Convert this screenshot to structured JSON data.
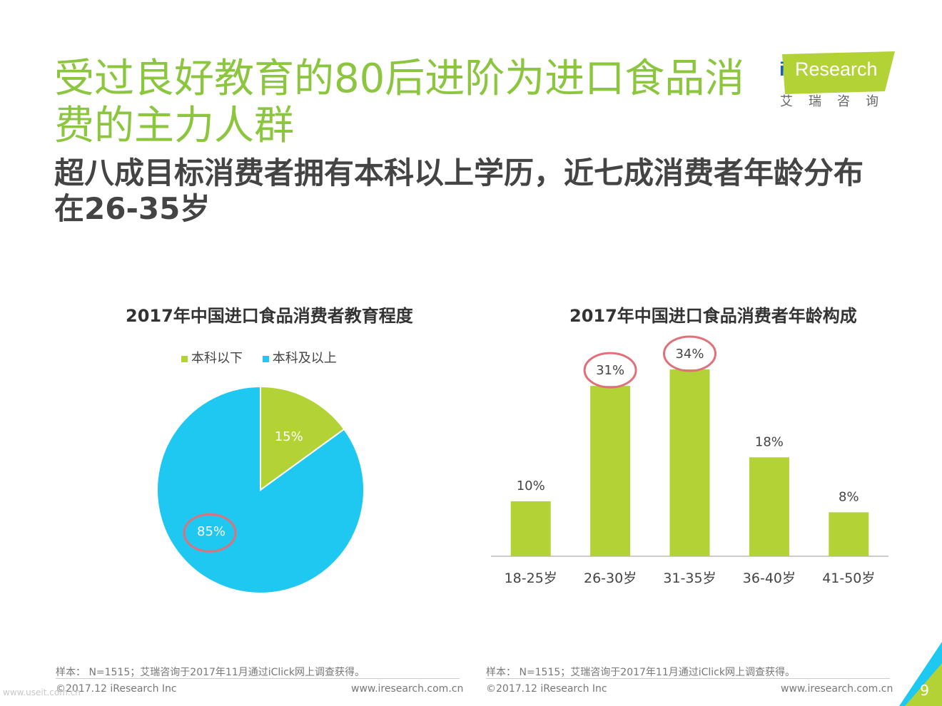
{
  "header": {
    "title": "受过良好教育的80后进阶为进口食品消费的主力人群",
    "subtitle": "超八成目标消费者拥有本科以上学历，近七成消费者年龄分布在26-35岁",
    "logo_text": "Research",
    "logo_i": "i",
    "logo_sub": "艾瑞咨询"
  },
  "colors": {
    "green": "#b2d235",
    "blue": "#1fc8f0",
    "title_green": "#8cc63f",
    "circle": "#e0707a"
  },
  "pie_chart": {
    "title": "2017年中国进口食品消费者教育程度",
    "legend": [
      {
        "label": "本科以下",
        "color": "#b2d235"
      },
      {
        "label": "本科及以上",
        "color": "#1fc8f0"
      }
    ]
  },
  "bar_chart": {
    "title": "2017年中国进口食品消费者年龄构成"
  },
  "chart_data": [
    {
      "type": "pie",
      "title": "2017年中国进口食品消费者教育程度",
      "slices": [
        {
          "label": "本科以下",
          "value": 15,
          "display": "15%",
          "color": "#b2d235"
        },
        {
          "label": "本科及以上",
          "value": 85,
          "display": "85%",
          "color": "#1fc8f0",
          "highlighted": true
        }
      ],
      "legend_placement": "top"
    },
    {
      "type": "bar",
      "title": "2017年中国进口食品消费者年龄构成",
      "categories": [
        "18-25岁",
        "26-30岁",
        "31-35岁",
        "36-40岁",
        "41-50岁"
      ],
      "values": [
        10,
        31,
        34,
        18,
        8
      ],
      "labels": [
        "10%",
        "31%",
        "34%",
        "18%",
        "8%"
      ],
      "highlighted": [
        "26-30岁",
        "31-35岁"
      ],
      "color": "#b2d235",
      "ylim": [
        0,
        34
      ],
      "grid": false
    }
  ],
  "footer": {
    "left": {
      "note": "样本： N=1515；艾瑞咨询于2017年11月通过iClick网上调查获得。",
      "copyright": "©2017.12 iResearch Inc",
      "url": "www.iresearch.com.cn"
    },
    "right": {
      "note": "样本： N=1515；艾瑞咨询于2017年11月通过iClick网上调查获得。",
      "copyright": "©2017.12 iResearch Inc",
      "url": "www.iresearch.com.cn"
    },
    "page_number": "9",
    "watermark": "www.useit.com.cn"
  }
}
